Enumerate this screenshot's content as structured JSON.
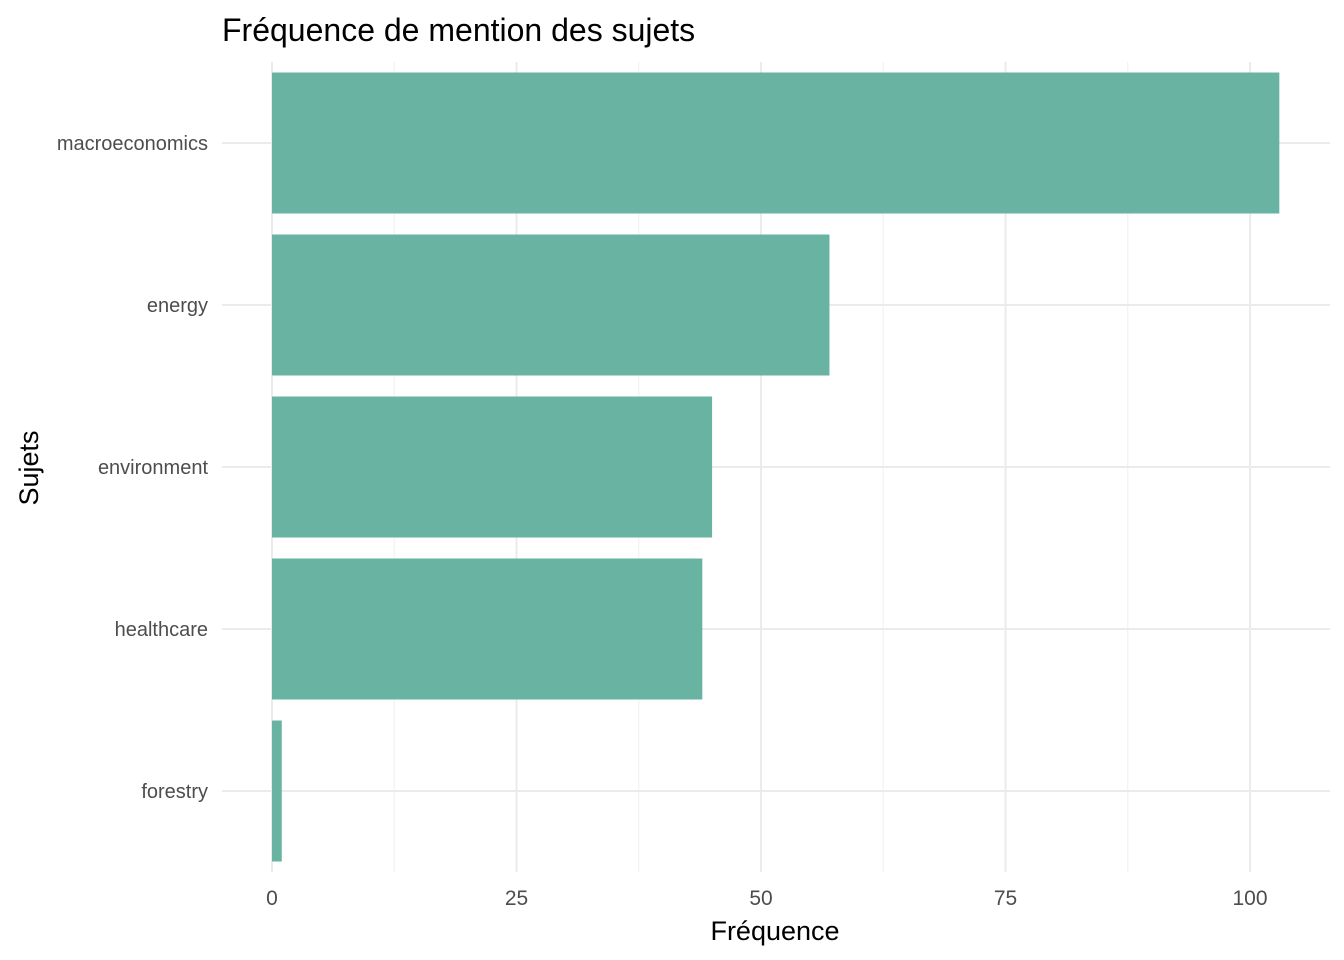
{
  "chart_data": {
    "type": "bar",
    "orientation": "horizontal",
    "title": "Fréquence de mention des sujets",
    "xlabel": "Fréquence",
    "ylabel": "Sujets",
    "categories": [
      "macroeconomics",
      "energy",
      "environment",
      "healthcare",
      "forestry"
    ],
    "values": [
      103,
      57,
      45,
      44,
      1
    ],
    "xlim": [
      0,
      108
    ],
    "xticks": [
      0,
      25,
      50,
      75,
      100
    ],
    "xtick_labels": [
      "0",
      "25",
      "50",
      "75",
      "100"
    ],
    "grid": true,
    "legend": "none",
    "bar_color": "#69b3a2"
  }
}
